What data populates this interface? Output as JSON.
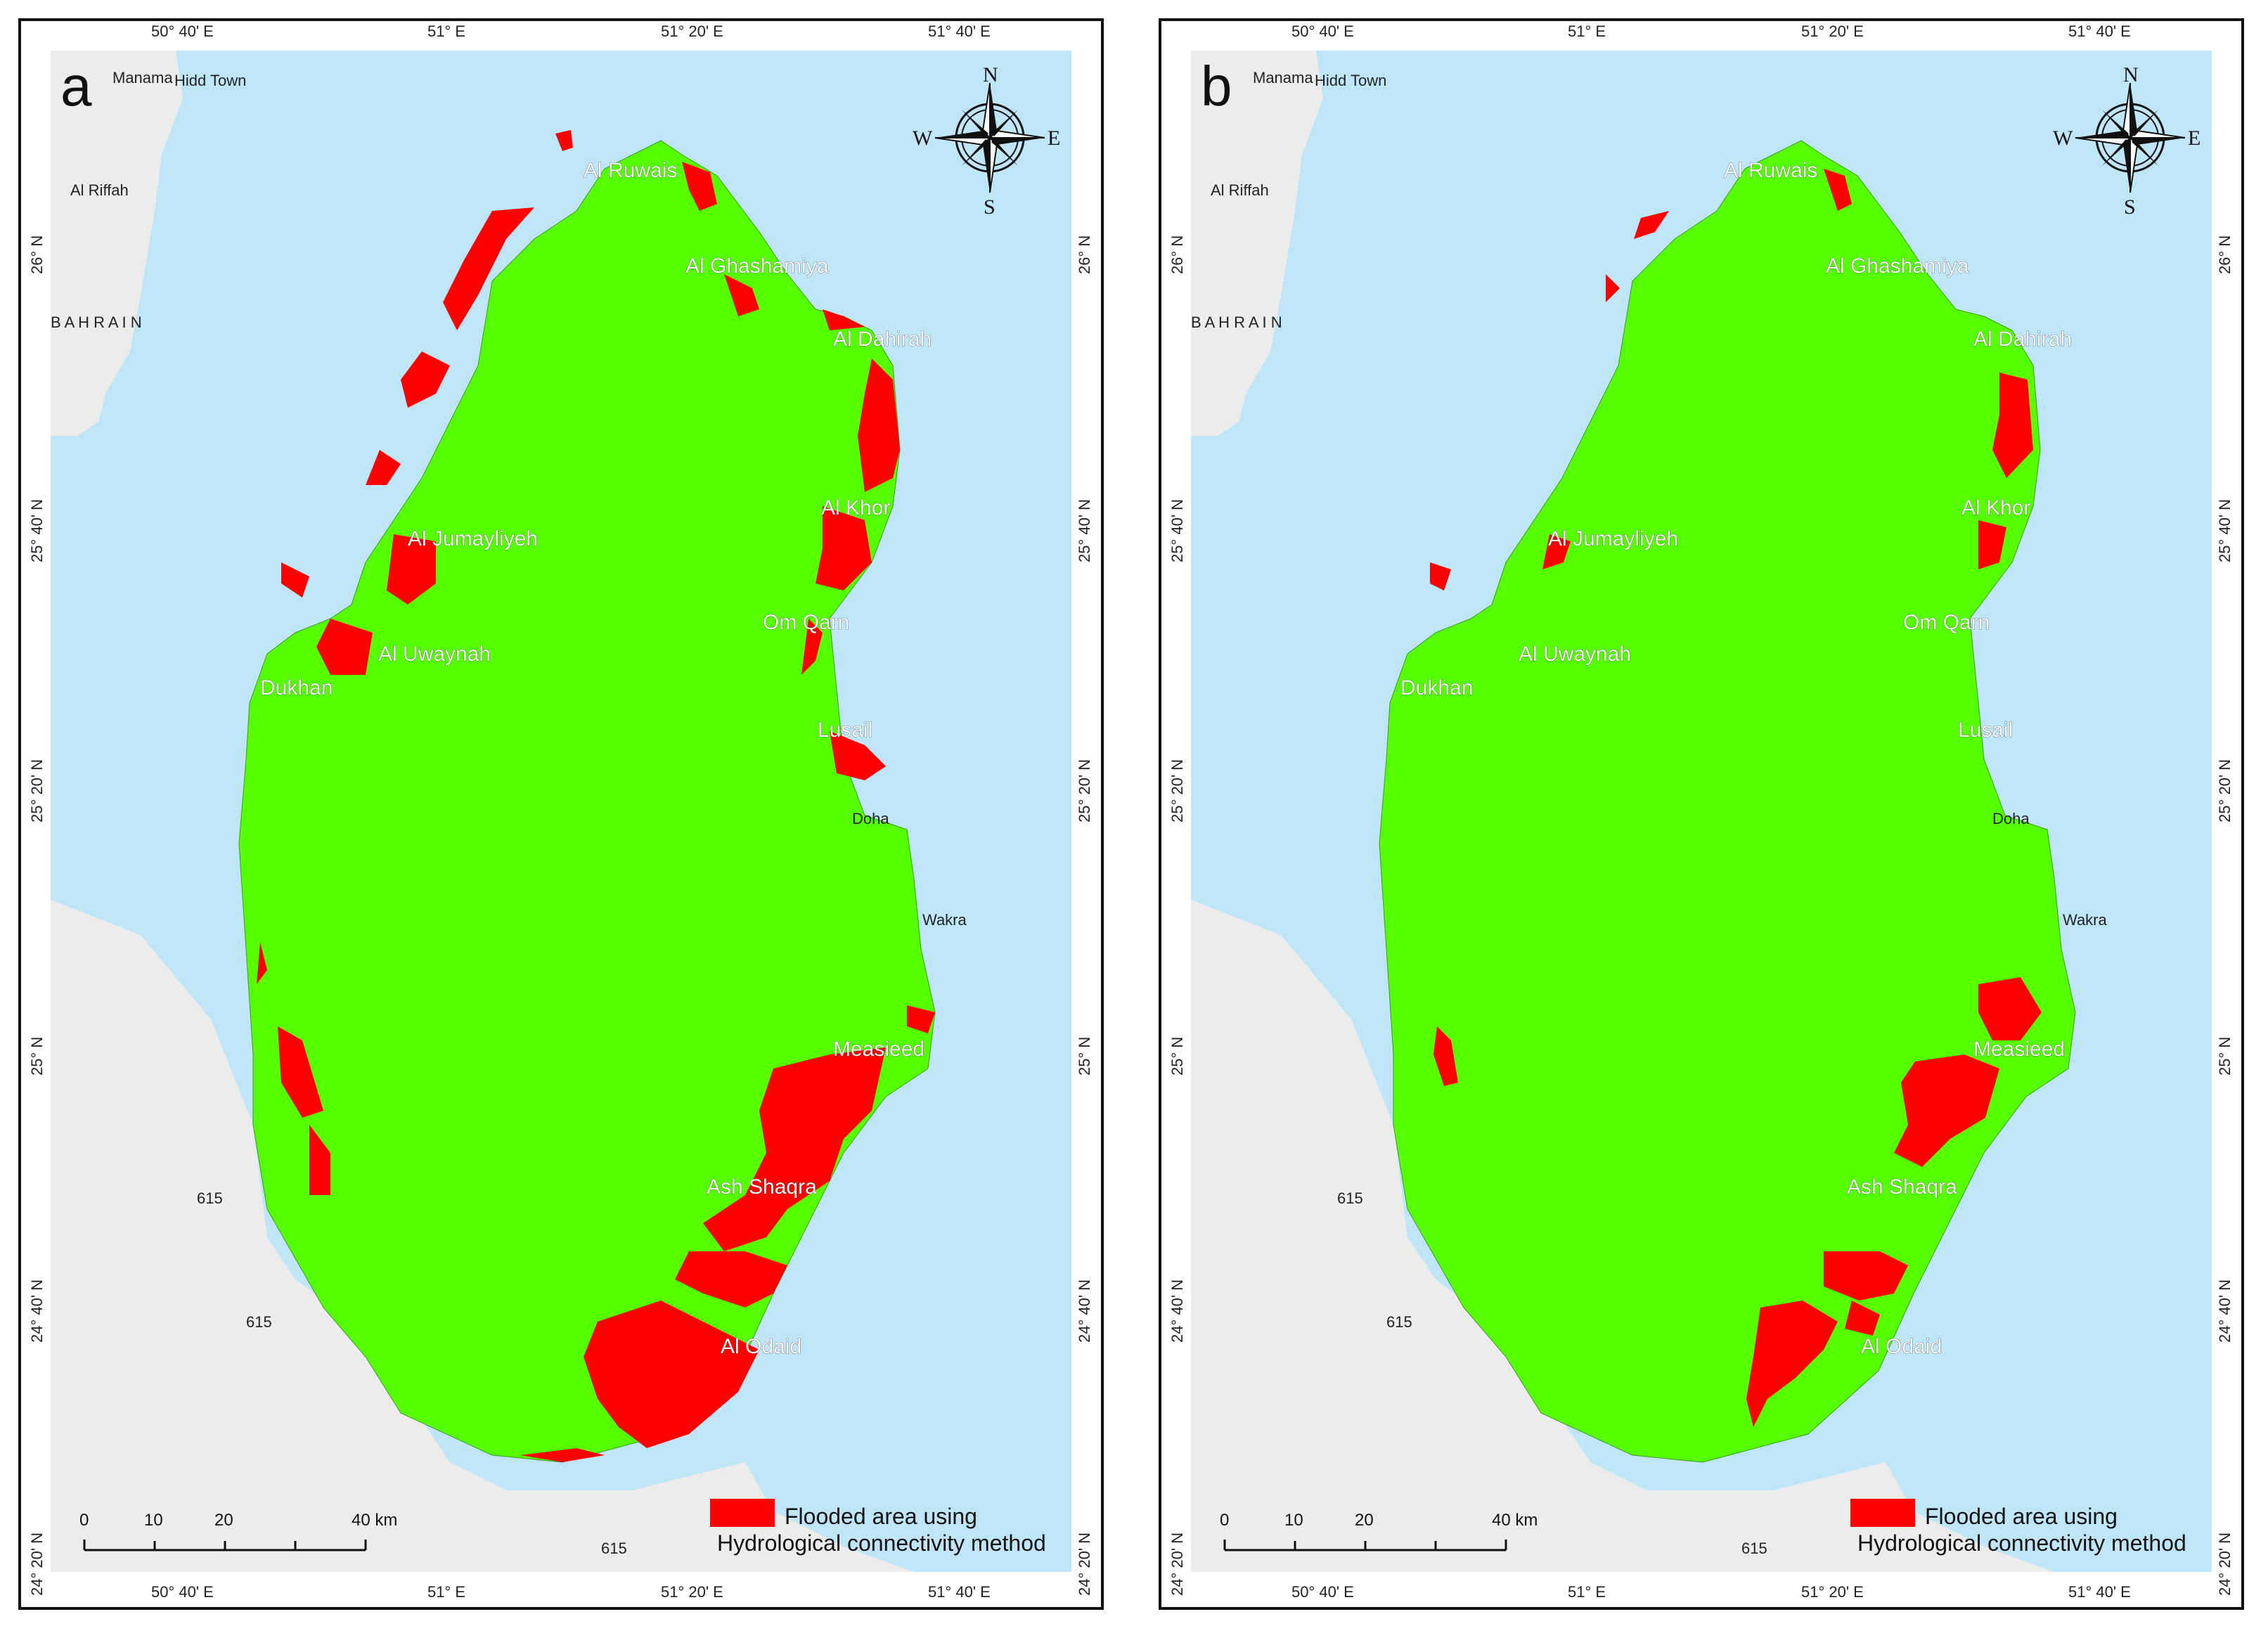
{
  "panels": [
    {
      "id": "a",
      "letter": "a",
      "legend": {
        "line1": "Flooded area using",
        "line2": "Hydrological connectivity method",
        "swatch": "#ff0000"
      },
      "flood_extent": "large"
    },
    {
      "id": "b",
      "letter": "b",
      "legend": {
        "line1": "Flooded area using",
        "line2": "Hydrological connectivity method",
        "swatch": "#ff0000"
      },
      "flood_extent": "small"
    }
  ],
  "top_labels": [
    "50° 40' E",
    "51° E",
    "51° 20' E",
    "51° 40' E"
  ],
  "bottom_labels": [
    "50° 40' E",
    "51° E",
    "51° 20' E",
    "51° 40' E"
  ],
  "left_labels": [
    "26° N",
    "25° 40' N",
    "25° 20' N",
    "25° N",
    "24° 40' N",
    "24° 20' N"
  ],
  "right_labels": [
    "26° N",
    "25° 40' N",
    "25° 20' N",
    "25° N",
    "24° 40' N",
    "24° 20' N"
  ],
  "places": {
    "al_ruwais": "Al Ruwais",
    "al_ghashamiya": "Al Ghashamiya",
    "al_dahirah": "Al Dahirah",
    "al_khor": "Al Khor",
    "al_jumayliyeh": "Al Jumayliyeh",
    "om_qarn": "Om Qarn",
    "al_uwaynah": "Al Uwaynah",
    "dukhan": "Dukhan",
    "lusail": "Lusail",
    "doha": "Doha",
    "wakra": "Wakra",
    "measieed": "Measieed",
    "ash_shaqra": "Ash Shaqra",
    "al_odaid": "Al Odaid"
  },
  "background_places": {
    "manama": "Manama",
    "hidd_town": "Hidd Town",
    "al_riffah": "Al Riffah",
    "bahrain": "B A H R A I N",
    "road": "615"
  },
  "compass": {
    "n": "N",
    "s": "S",
    "e": "E",
    "w": "W"
  },
  "scale": {
    "ticks": [
      "0",
      "10",
      "20",
      "40 km"
    ]
  },
  "colors": {
    "land": "#55ff00",
    "flood": "#ff0000",
    "sea": "#bfe6f8",
    "neighbor_land": "#ececec"
  }
}
